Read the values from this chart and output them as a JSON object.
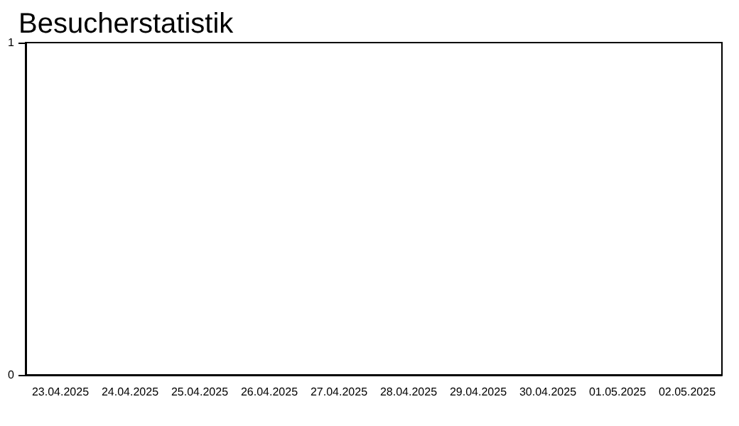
{
  "chart_data": {
    "type": "bar",
    "title": "Besucherstatistik",
    "categories": [
      "23.04.2025",
      "24.04.2025",
      "25.04.2025",
      "26.04.2025",
      "27.04.2025",
      "28.04.2025",
      "29.04.2025",
      "30.04.2025",
      "01.05.2025",
      "02.05.2025"
    ],
    "values": [
      0,
      0,
      0,
      0,
      0,
      0,
      0,
      0,
      0,
      0
    ],
    "ylim": [
      0,
      1
    ],
    "yticks": [
      0,
      1
    ],
    "grid": false
  }
}
